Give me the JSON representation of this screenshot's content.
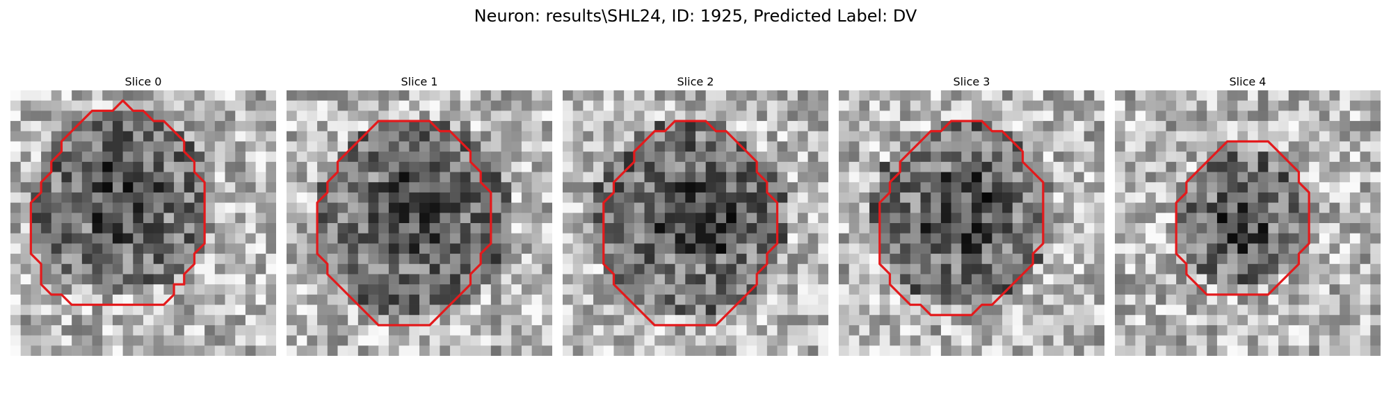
{
  "figure": {
    "title": "Neuron: results\\SHL24, ID: 1925, Predicted Label: DV",
    "outline_color": "#e31a1c",
    "colormap": "gray"
  },
  "panels": [
    {
      "title": "Slice 0",
      "outline": [
        [
          10,
          2
        ],
        [
          11,
          1
        ],
        [
          12,
          2
        ],
        [
          13,
          2
        ],
        [
          14,
          3
        ],
        [
          15,
          3
        ],
        [
          16,
          4
        ],
        [
          17,
          5
        ],
        [
          17,
          6
        ],
        [
          18,
          7
        ],
        [
          18,
          8
        ],
        [
          19,
          9
        ],
        [
          19,
          10
        ],
        [
          19,
          11
        ],
        [
          19,
          12
        ],
        [
          19,
          13
        ],
        [
          19,
          14
        ],
        [
          19,
          15
        ],
        [
          18,
          16
        ],
        [
          18,
          17
        ],
        [
          17,
          18
        ],
        [
          17,
          19
        ],
        [
          16,
          19
        ],
        [
          16,
          20
        ],
        [
          15,
          21
        ],
        [
          14,
          21
        ],
        [
          13,
          21
        ],
        [
          12,
          21
        ],
        [
          11,
          21
        ],
        [
          10,
          21
        ],
        [
          9,
          21
        ],
        [
          8,
          21
        ],
        [
          7,
          21
        ],
        [
          6,
          21
        ],
        [
          5,
          20
        ],
        [
          4,
          20
        ],
        [
          3,
          19
        ],
        [
          3,
          18
        ],
        [
          3,
          17
        ],
        [
          2,
          16
        ],
        [
          2,
          15
        ],
        [
          2,
          14
        ],
        [
          2,
          13
        ],
        [
          2,
          12
        ],
        [
          2,
          11
        ],
        [
          3,
          10
        ],
        [
          3,
          9
        ],
        [
          4,
          8
        ],
        [
          4,
          7
        ],
        [
          5,
          6
        ],
        [
          5,
          5
        ],
        [
          6,
          4
        ],
        [
          7,
          3
        ],
        [
          8,
          2
        ],
        [
          9,
          2
        ]
      ]
    },
    {
      "title": "Slice 1",
      "outline": [
        [
          12,
          3
        ],
        [
          13,
          3
        ],
        [
          14,
          3
        ],
        [
          15,
          4
        ],
        [
          16,
          4
        ],
        [
          17,
          5
        ],
        [
          18,
          6
        ],
        [
          18,
          7
        ],
        [
          19,
          8
        ],
        [
          19,
          9
        ],
        [
          20,
          10
        ],
        [
          20,
          11
        ],
        [
          20,
          12
        ],
        [
          20,
          13
        ],
        [
          20,
          14
        ],
        [
          20,
          15
        ],
        [
          19,
          16
        ],
        [
          19,
          17
        ],
        [
          18,
          18
        ],
        [
          18,
          19
        ],
        [
          17,
          20
        ],
        [
          16,
          21
        ],
        [
          15,
          22
        ],
        [
          14,
          23
        ],
        [
          13,
          23
        ],
        [
          12,
          23
        ],
        [
          11,
          23
        ],
        [
          10,
          23
        ],
        [
          9,
          23
        ],
        [
          8,
          22
        ],
        [
          7,
          21
        ],
        [
          6,
          20
        ],
        [
          5,
          19
        ],
        [
          4,
          18
        ],
        [
          4,
          17
        ],
        [
          3,
          16
        ],
        [
          3,
          15
        ],
        [
          3,
          14
        ],
        [
          3,
          13
        ],
        [
          3,
          12
        ],
        [
          3,
          11
        ],
        [
          4,
          10
        ],
        [
          4,
          9
        ],
        [
          5,
          8
        ],
        [
          5,
          7
        ],
        [
          6,
          6
        ],
        [
          7,
          5
        ],
        [
          8,
          4
        ],
        [
          9,
          3
        ],
        [
          10,
          3
        ],
        [
          11,
          3
        ]
      ]
    },
    {
      "title": "Slice 2",
      "outline": [
        [
          12,
          3
        ],
        [
          13,
          3
        ],
        [
          14,
          3
        ],
        [
          15,
          4
        ],
        [
          16,
          4
        ],
        [
          17,
          5
        ],
        [
          18,
          6
        ],
        [
          19,
          7
        ],
        [
          19,
          8
        ],
        [
          20,
          9
        ],
        [
          20,
          10
        ],
        [
          21,
          11
        ],
        [
          21,
          12
        ],
        [
          21,
          13
        ],
        [
          21,
          14
        ],
        [
          21,
          15
        ],
        [
          20,
          16
        ],
        [
          20,
          17
        ],
        [
          19,
          18
        ],
        [
          19,
          19
        ],
        [
          18,
          20
        ],
        [
          17,
          21
        ],
        [
          16,
          22
        ],
        [
          15,
          23
        ],
        [
          14,
          23
        ],
        [
          13,
          23
        ],
        [
          12,
          23
        ],
        [
          11,
          23
        ],
        [
          10,
          23
        ],
        [
          9,
          23
        ],
        [
          8,
          22
        ],
        [
          7,
          21
        ],
        [
          6,
          20
        ],
        [
          5,
          19
        ],
        [
          5,
          18
        ],
        [
          4,
          17
        ],
        [
          4,
          16
        ],
        [
          4,
          15
        ],
        [
          4,
          14
        ],
        [
          4,
          13
        ],
        [
          4,
          12
        ],
        [
          4,
          11
        ],
        [
          5,
          10
        ],
        [
          5,
          9
        ],
        [
          6,
          8
        ],
        [
          7,
          7
        ],
        [
          7,
          6
        ],
        [
          8,
          5
        ],
        [
          9,
          4
        ],
        [
          10,
          4
        ],
        [
          11,
          3
        ]
      ]
    },
    {
      "title": "Slice 3",
      "outline": [
        [
          11,
          3
        ],
        [
          12,
          3
        ],
        [
          13,
          3
        ],
        [
          14,
          3
        ],
        [
          15,
          4
        ],
        [
          16,
          4
        ],
        [
          17,
          5
        ],
        [
          18,
          6
        ],
        [
          18,
          7
        ],
        [
          19,
          8
        ],
        [
          20,
          9
        ],
        [
          20,
          10
        ],
        [
          20,
          11
        ],
        [
          20,
          12
        ],
        [
          20,
          13
        ],
        [
          20,
          14
        ],
        [
          20,
          15
        ],
        [
          19,
          16
        ],
        [
          19,
          17
        ],
        [
          18,
          18
        ],
        [
          17,
          19
        ],
        [
          16,
          20
        ],
        [
          15,
          21
        ],
        [
          14,
          21
        ],
        [
          13,
          22
        ],
        [
          12,
          22
        ],
        [
          11,
          22
        ],
        [
          10,
          22
        ],
        [
          9,
          22
        ],
        [
          8,
          21
        ],
        [
          7,
          21
        ],
        [
          6,
          20
        ],
        [
          5,
          19
        ],
        [
          5,
          18
        ],
        [
          4,
          17
        ],
        [
          4,
          16
        ],
        [
          4,
          15
        ],
        [
          4,
          14
        ],
        [
          4,
          13
        ],
        [
          4,
          12
        ],
        [
          4,
          11
        ],
        [
          5,
          10
        ],
        [
          5,
          9
        ],
        [
          6,
          8
        ],
        [
          6,
          7
        ],
        [
          7,
          6
        ],
        [
          8,
          5
        ],
        [
          9,
          4
        ],
        [
          10,
          4
        ]
      ]
    },
    {
      "title": "Slice 4",
      "outline": [
        [
          12,
          5
        ],
        [
          13,
          5
        ],
        [
          14,
          5
        ],
        [
          15,
          5
        ],
        [
          16,
          6
        ],
        [
          17,
          7
        ],
        [
          18,
          8
        ],
        [
          18,
          9
        ],
        [
          19,
          10
        ],
        [
          19,
          11
        ],
        [
          19,
          12
        ],
        [
          19,
          13
        ],
        [
          19,
          14
        ],
        [
          19,
          15
        ],
        [
          18,
          16
        ],
        [
          18,
          17
        ],
        [
          17,
          18
        ],
        [
          16,
          19
        ],
        [
          15,
          20
        ],
        [
          14,
          20
        ],
        [
          13,
          20
        ],
        [
          12,
          20
        ],
        [
          11,
          20
        ],
        [
          10,
          20
        ],
        [
          9,
          20
        ],
        [
          8,
          19
        ],
        [
          7,
          18
        ],
        [
          7,
          17
        ],
        [
          6,
          16
        ],
        [
          6,
          15
        ],
        [
          6,
          14
        ],
        [
          6,
          13
        ],
        [
          6,
          12
        ],
        [
          6,
          11
        ],
        [
          7,
          10
        ],
        [
          7,
          9
        ],
        [
          8,
          8
        ],
        [
          9,
          7
        ],
        [
          10,
          6
        ],
        [
          11,
          5
        ]
      ]
    }
  ]
}
